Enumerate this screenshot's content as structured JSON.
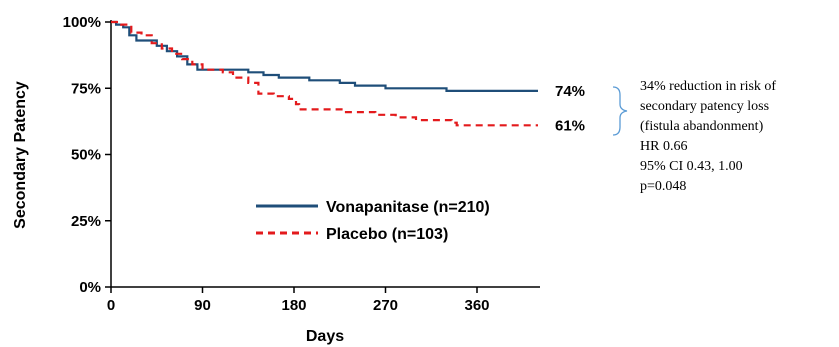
{
  "chart_data": {
    "type": "line",
    "xlabel": "Days",
    "ylabel": "Secondary Patency",
    "xlim": [
      0,
      420
    ],
    "ylim": [
      0,
      100
    ],
    "x_ticks": [
      0,
      90,
      180,
      270,
      360
    ],
    "x_tick_labels": [
      "0",
      "90",
      "180",
      "270",
      "360"
    ],
    "y_ticks": [
      0,
      25,
      50,
      75,
      100
    ],
    "y_tick_labels": [
      "0%",
      "25%",
      "50%",
      "75%",
      "100%"
    ],
    "legend_position": "bottom-center",
    "series": [
      {
        "name": "Vonapanitase (n=210)",
        "color": "#1f4e79",
        "style": "solid",
        "end_label": "74%",
        "points": [
          [
            0,
            100
          ],
          [
            5,
            99
          ],
          [
            12,
            98
          ],
          [
            18,
            95
          ],
          [
            25,
            93
          ],
          [
            35,
            93
          ],
          [
            45,
            91
          ],
          [
            55,
            89
          ],
          [
            65,
            87
          ],
          [
            75,
            84
          ],
          [
            85,
            82
          ],
          [
            95,
            82
          ],
          [
            120,
            82
          ],
          [
            135,
            81
          ],
          [
            150,
            80
          ],
          [
            165,
            79
          ],
          [
            180,
            79
          ],
          [
            195,
            78
          ],
          [
            210,
            78
          ],
          [
            225,
            77
          ],
          [
            240,
            76
          ],
          [
            255,
            76
          ],
          [
            270,
            75
          ],
          [
            300,
            75
          ],
          [
            330,
            74
          ],
          [
            360,
            74
          ],
          [
            420,
            74
          ]
        ]
      },
      {
        "name": "Placebo (n=103)",
        "color": "#e31a1c",
        "style": "dashed",
        "end_label": "61%",
        "points": [
          [
            0,
            100
          ],
          [
            10,
            99
          ],
          [
            20,
            96
          ],
          [
            30,
            95
          ],
          [
            40,
            92
          ],
          [
            50,
            90
          ],
          [
            60,
            88
          ],
          [
            70,
            86
          ],
          [
            80,
            84
          ],
          [
            90,
            82
          ],
          [
            110,
            81
          ],
          [
            120,
            79
          ],
          [
            135,
            77
          ],
          [
            145,
            73
          ],
          [
            160,
            72
          ],
          [
            175,
            71
          ],
          [
            182,
            69
          ],
          [
            185,
            67
          ],
          [
            200,
            67
          ],
          [
            230,
            66
          ],
          [
            260,
            65
          ],
          [
            280,
            64
          ],
          [
            300,
            63
          ],
          [
            335,
            62
          ],
          [
            340,
            61
          ],
          [
            420,
            61
          ]
        ]
      }
    ]
  },
  "annotation": {
    "bracket_color": "#5b9bd5",
    "lines": [
      "34% reduction in risk  of",
      "secondary patency loss",
      "(fistula abandonment)",
      "HR 0.66",
      "95% CI 0.43, 1.00",
      "p=0.048"
    ]
  }
}
